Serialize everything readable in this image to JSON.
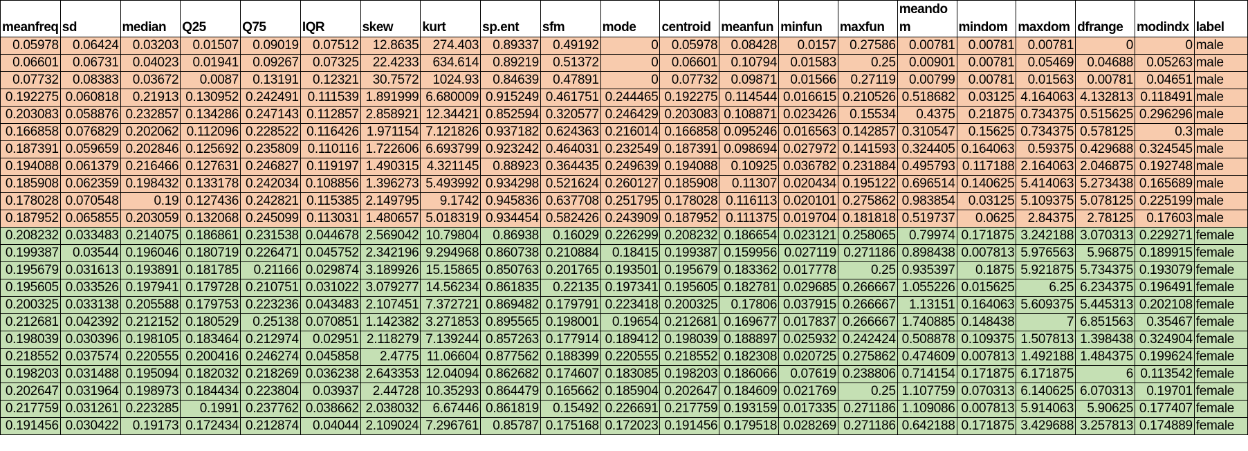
{
  "sheet": {
    "columns": [
      "meanfreq",
      "sd",
      "median",
      "Q25",
      "Q75",
      "IQR",
      "skew",
      "kurt",
      "sp.ent",
      "sfm",
      "mode",
      "centroid",
      "meanfun",
      "minfun",
      "maxfun",
      "meandom",
      "mindom",
      "maxdom",
      "dfrange",
      "modindx",
      "label"
    ],
    "colors": {
      "male_row": "#f8cbad",
      "female_row": "#c5e0b4"
    },
    "rows": [
      [
        "0.05978",
        "0.06424",
        "0.03203",
        "0.01507",
        "0.09019",
        "0.07512",
        "12.8635",
        "274.403",
        "0.89337",
        "0.49192",
        "0",
        "0.05978",
        "0.08428",
        "0.0157",
        "0.27586",
        "0.00781",
        "0.00781",
        "0.00781",
        "0",
        "0",
        "male"
      ],
      [
        "0.06601",
        "0.06731",
        "0.04023",
        "0.01941",
        "0.09267",
        "0.07325",
        "22.4233",
        "634.614",
        "0.89219",
        "0.51372",
        "0",
        "0.06601",
        "0.10794",
        "0.01583",
        "0.25",
        "0.00901",
        "0.00781",
        "0.05469",
        "0.04688",
        "0.05263",
        "male"
      ],
      [
        "0.07732",
        "0.08383",
        "0.03672",
        "0.0087",
        "0.13191",
        "0.12321",
        "30.7572",
        "1024.93",
        "0.84639",
        "0.47891",
        "0",
        "0.07732",
        "0.09871",
        "0.01566",
        "0.27119",
        "0.00799",
        "0.00781",
        "0.01563",
        "0.00781",
        "0.04651",
        "male"
      ],
      [
        "0.192275",
        "0.060818",
        "0.21913",
        "0.130952",
        "0.242491",
        "0.111539",
        "1.891999",
        "6.680009",
        "0.915249",
        "0.461751",
        "0.244465",
        "0.192275",
        "0.114544",
        "0.016615",
        "0.210526",
        "0.518682",
        "0.03125",
        "4.164063",
        "4.132813",
        "0.118491",
        "male"
      ],
      [
        "0.203083",
        "0.058876",
        "0.232857",
        "0.134286",
        "0.247143",
        "0.112857",
        "2.858921",
        "12.34421",
        "0.852594",
        "0.320577",
        "0.246429",
        "0.203083",
        "0.108871",
        "0.023426",
        "0.15534",
        "0.4375",
        "0.21875",
        "0.734375",
        "0.515625",
        "0.296296",
        "male"
      ],
      [
        "0.166858",
        "0.076829",
        "0.202062",
        "0.112096",
        "0.228522",
        "0.116426",
        "1.971154",
        "7.121826",
        "0.937182",
        "0.624363",
        "0.216014",
        "0.166858",
        "0.095246",
        "0.016563",
        "0.142857",
        "0.310547",
        "0.15625",
        "0.734375",
        "0.578125",
        "0.3",
        "male"
      ],
      [
        "0.187391",
        "0.059659",
        "0.202846",
        "0.125692",
        "0.235809",
        "0.110116",
        "1.722606",
        "6.693799",
        "0.923242",
        "0.464031",
        "0.232549",
        "0.187391",
        "0.098694",
        "0.027972",
        "0.141593",
        "0.324405",
        "0.164063",
        "0.59375",
        "0.429688",
        "0.324545",
        "male"
      ],
      [
        "0.194088",
        "0.061379",
        "0.216466",
        "0.127631",
        "0.246827",
        "0.119197",
        "1.490315",
        "4.321145",
        "0.88923",
        "0.364435",
        "0.249639",
        "0.194088",
        "0.10925",
        "0.036782",
        "0.231884",
        "0.495793",
        "0.117188",
        "2.164063",
        "2.046875",
        "0.192748",
        "male"
      ],
      [
        "0.185908",
        "0.062359",
        "0.198432",
        "0.133178",
        "0.242034",
        "0.108856",
        "1.396273",
        "5.493992",
        "0.934298",
        "0.521624",
        "0.260127",
        "0.185908",
        "0.11307",
        "0.020434",
        "0.195122",
        "0.696514",
        "0.140625",
        "5.414063",
        "5.273438",
        "0.165689",
        "male"
      ],
      [
        "0.178028",
        "0.070548",
        "0.19",
        "0.127436",
        "0.242821",
        "0.115385",
        "2.149795",
        "9.1742",
        "0.945836",
        "0.637708",
        "0.251795",
        "0.178028",
        "0.116113",
        "0.020101",
        "0.275862",
        "0.983854",
        "0.03125",
        "5.109375",
        "5.078125",
        "0.225199",
        "male"
      ],
      [
        "0.187952",
        "0.065855",
        "0.203059",
        "0.132068",
        "0.245099",
        "0.113031",
        "1.480657",
        "5.018319",
        "0.934454",
        "0.582426",
        "0.243909",
        "0.187952",
        "0.111375",
        "0.019704",
        "0.181818",
        "0.519737",
        "0.0625",
        "2.84375",
        "2.78125",
        "0.17603",
        "male"
      ],
      [
        "0.208232",
        "0.033483",
        "0.214075",
        "0.186861",
        "0.231538",
        "0.044678",
        "2.569042",
        "10.79804",
        "0.86938",
        "0.16029",
        "0.226299",
        "0.208232",
        "0.186654",
        "0.023121",
        "0.258065",
        "0.79974",
        "0.171875",
        "3.242188",
        "3.070313",
        "0.229271",
        "female"
      ],
      [
        "0.199387",
        "0.03544",
        "0.196046",
        "0.180719",
        "0.226471",
        "0.045752",
        "2.342196",
        "9.294968",
        "0.860738",
        "0.210884",
        "0.18415",
        "0.199387",
        "0.159956",
        "0.027119",
        "0.271186",
        "0.898438",
        "0.007813",
        "5.976563",
        "5.96875",
        "0.189915",
        "female"
      ],
      [
        "0.195679",
        "0.031613",
        "0.193891",
        "0.181785",
        "0.21166",
        "0.029874",
        "3.189926",
        "15.15865",
        "0.850763",
        "0.201765",
        "0.193501",
        "0.195679",
        "0.183362",
        "0.017778",
        "0.25",
        "0.935397",
        "0.1875",
        "5.921875",
        "5.734375",
        "0.193079",
        "female"
      ],
      [
        "0.195605",
        "0.033526",
        "0.197941",
        "0.179728",
        "0.210751",
        "0.031022",
        "3.079277",
        "14.56234",
        "0.861835",
        "0.22135",
        "0.197341",
        "0.195605",
        "0.182781",
        "0.029685",
        "0.266667",
        "1.055226",
        "0.015625",
        "6.25",
        "6.234375",
        "0.196491",
        "female"
      ],
      [
        "0.200325",
        "0.033138",
        "0.205588",
        "0.179753",
        "0.223236",
        "0.043483",
        "2.107451",
        "7.372721",
        "0.869482",
        "0.179791",
        "0.223418",
        "0.200325",
        "0.17806",
        "0.037915",
        "0.266667",
        "1.13151",
        "0.164063",
        "5.609375",
        "5.445313",
        "0.202108",
        "female"
      ],
      [
        "0.212681",
        "0.042392",
        "0.212152",
        "0.180529",
        "0.25138",
        "0.070851",
        "1.142382",
        "3.271853",
        "0.895565",
        "0.198001",
        "0.19654",
        "0.212681",
        "0.169677",
        "0.017837",
        "0.266667",
        "1.740885",
        "0.148438",
        "7",
        "6.851563",
        "0.35467",
        "female"
      ],
      [
        "0.198039",
        "0.030396",
        "0.198105",
        "0.183464",
        "0.212974",
        "0.02951",
        "2.118279",
        "7.139244",
        "0.857263",
        "0.177914",
        "0.189412",
        "0.198039",
        "0.188897",
        "0.025932",
        "0.242424",
        "0.508878",
        "0.109375",
        "1.507813",
        "1.398438",
        "0.324904",
        "female"
      ],
      [
        "0.218552",
        "0.037574",
        "0.220555",
        "0.200416",
        "0.246274",
        "0.045858",
        "2.4775",
        "11.06604",
        "0.877562",
        "0.188399",
        "0.220555",
        "0.218552",
        "0.182308",
        "0.020725",
        "0.275862",
        "0.474609",
        "0.007813",
        "1.492188",
        "1.484375",
        "0.199624",
        "female"
      ],
      [
        "0.198203",
        "0.031488",
        "0.195094",
        "0.182032",
        "0.218269",
        "0.036238",
        "2.643353",
        "12.04094",
        "0.862682",
        "0.174607",
        "0.183085",
        "0.198203",
        "0.186066",
        "0.07619",
        "0.238806",
        "0.714154",
        "0.171875",
        "6.171875",
        "6",
        "0.113542",
        "female"
      ],
      [
        "0.202647",
        "0.031964",
        "0.198973",
        "0.184434",
        "0.223804",
        "0.03937",
        "2.44728",
        "10.35293",
        "0.864479",
        "0.165662",
        "0.185904",
        "0.202647",
        "0.184609",
        "0.021769",
        "0.25",
        "1.107759",
        "0.070313",
        "6.140625",
        "6.070313",
        "0.19701",
        "female"
      ],
      [
        "0.217759",
        "0.031261",
        "0.223285",
        "0.1991",
        "0.237762",
        "0.038662",
        "2.038032",
        "6.67446",
        "0.861819",
        "0.15492",
        "0.226691",
        "0.217759",
        "0.193159",
        "0.017335",
        "0.271186",
        "1.109086",
        "0.007813",
        "5.914063",
        "5.90625",
        "0.177407",
        "female"
      ],
      [
        "0.191456",
        "0.030422",
        "0.19173",
        "0.172434",
        "0.212874",
        "0.04044",
        "2.109024",
        "7.296761",
        "0.85787",
        "0.175168",
        "0.172023",
        "0.191456",
        "0.179518",
        "0.028269",
        "0.271186",
        "0.642188",
        "0.171875",
        "3.429688",
        "3.257813",
        "0.174889",
        "female"
      ]
    ]
  }
}
